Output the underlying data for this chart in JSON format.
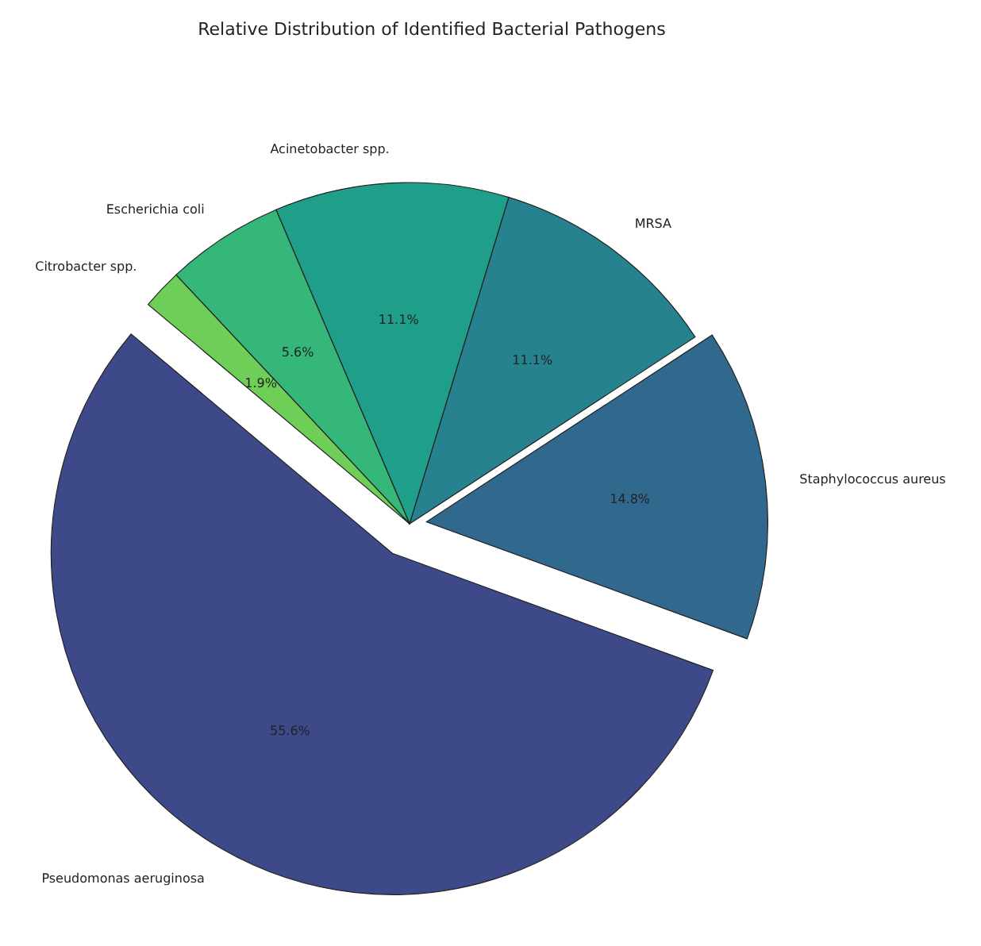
{
  "chart_data": {
    "type": "pie",
    "title": "Relative Distribution of Identified Bacterial Pathogens",
    "categories": [
      "Pseudomonas aeruginosa",
      "Staphylococcus aureus",
      "MRSA",
      "Acinetobacter spp.",
      "Escherichia coli",
      "Citrobacter spp."
    ],
    "values": [
      55.6,
      14.8,
      11.1,
      11.1,
      5.6,
      1.9
    ],
    "colors": [
      "#3e4989",
      "#31688e",
      "#26828e",
      "#1f9e89",
      "#35b779",
      "#6ece58"
    ],
    "value_labels": [
      "55.6%",
      "14.8%",
      "11.1%",
      "11.1%",
      "5.6%",
      "1.9%"
    ]
  }
}
